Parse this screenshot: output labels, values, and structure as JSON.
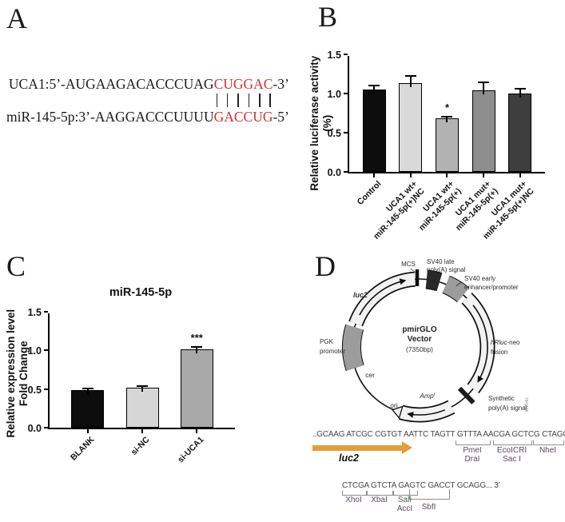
{
  "panels": {
    "a": {
      "label": "A",
      "alignment": {
        "line1_prefix": "UCA1:5’-AUGAAGACACCCUAG",
        "line1_match": "CUGGAC",
        "line1_suffix": "-3’",
        "line2_prefix": "miR-145-5p:3’-AAGGACCCUUUU",
        "line2_match": "GACCUG",
        "line2_suffix": "-5’",
        "pair_count": 6,
        "match_color": "#d03030"
      }
    },
    "b": {
      "label": "B"
    },
    "c": {
      "label": "C"
    },
    "d": {
      "label": "D",
      "vector": {
        "name_line1": "pmirGLO",
        "name_line2": "Vector",
        "size": "(7350bp)",
        "watermark": "7841MA",
        "features": {
          "luc2": "luc2",
          "mcs": "MCS",
          "sv40_late_l1": "SV40 late",
          "sv40_late_l2": "poly(A) signal",
          "sv40_early_l1": "SV40 early",
          "sv40_early_l2": "enhancer/promoter",
          "hrluc_italic": "hRluc",
          "hrluc_rest": "-neo",
          "hrluc_l2": "fusion",
          "synthetic_l1": "Synthetic",
          "synthetic_l2": "poly(A) signal",
          "amp": "Amp",
          "amp_sup": "r",
          "ori": "ori",
          "cer": "cer",
          "pgk_l1": "PGK",
          "pgk_l2": "promoter"
        }
      },
      "mcs_sequence": {
        "line1": "..GCAAG ATCGC CGTGT AATTC TAGTT GTTTA AACGA GCTCG CTAGC",
        "arrow_label": "luc2",
        "line2": "CTCGA GTCTA GAGTC GACCT GCAGG... 3’",
        "sites": {
          "pme": "PmeI",
          "dra": "DraI",
          "ecoicri": "EcoICRI",
          "sac": "Sac I",
          "nhe": "NheI",
          "xho": "XhoI",
          "xba": "XbaI",
          "sal": "SalI",
          "acc": "AccI",
          "sbf": "SbfI"
        }
      }
    }
  },
  "chart_data": [
    {
      "type": "bar",
      "panel": "B",
      "ylabel": "Relative luciferase activity (%)",
      "ylim": [
        0,
        1.5
      ],
      "yticks": [
        "0.0",
        "0.5",
        "1.0",
        "1.5"
      ],
      "categories": [
        [
          "Control"
        ],
        [
          "UCA1 wt+",
          "miR-145-5p(+)NC"
        ],
        [
          "UCA1 wt+",
          "miR-145-5p(+)"
        ],
        [
          "UCA1 mut+",
          "miR-145-5p(+)"
        ],
        [
          "UCA1 mut+",
          "miR-145-5p(+)NC"
        ]
      ],
      "values": [
        1.05,
        1.13,
        0.68,
        1.04,
        1.0
      ],
      "errors": [
        0.06,
        0.1,
        0.03,
        0.11,
        0.075
      ],
      "bar_colors": [
        "#0d0d0d",
        "#d9d9d9",
        "#b2b2b2",
        "#8d8d8d",
        "#3e3e3e"
      ],
      "significance": [
        null,
        null,
        "*",
        null,
        null
      ],
      "grid": false,
      "legend": null
    },
    {
      "type": "bar",
      "panel": "C",
      "title": "miR-145-5p",
      "ylabel_line1": "Relative expression level",
      "ylabel_line2": "Fold Change",
      "ylim": [
        0,
        1.5
      ],
      "yticks": [
        "0.0",
        "0.5",
        "1.0",
        "1.5"
      ],
      "categories": [
        [
          "BLANK"
        ],
        [
          "si-NC"
        ],
        [
          "si-UCA1"
        ]
      ],
      "values": [
        0.49,
        0.52,
        1.01
      ],
      "errors": [
        0.015,
        0.02,
        0.05
      ],
      "bar_colors": [
        "#0d0d0d",
        "#d6d6d6",
        "#a8a8a8"
      ],
      "significance": [
        null,
        null,
        "***"
      ],
      "grid": false,
      "legend": null
    }
  ]
}
